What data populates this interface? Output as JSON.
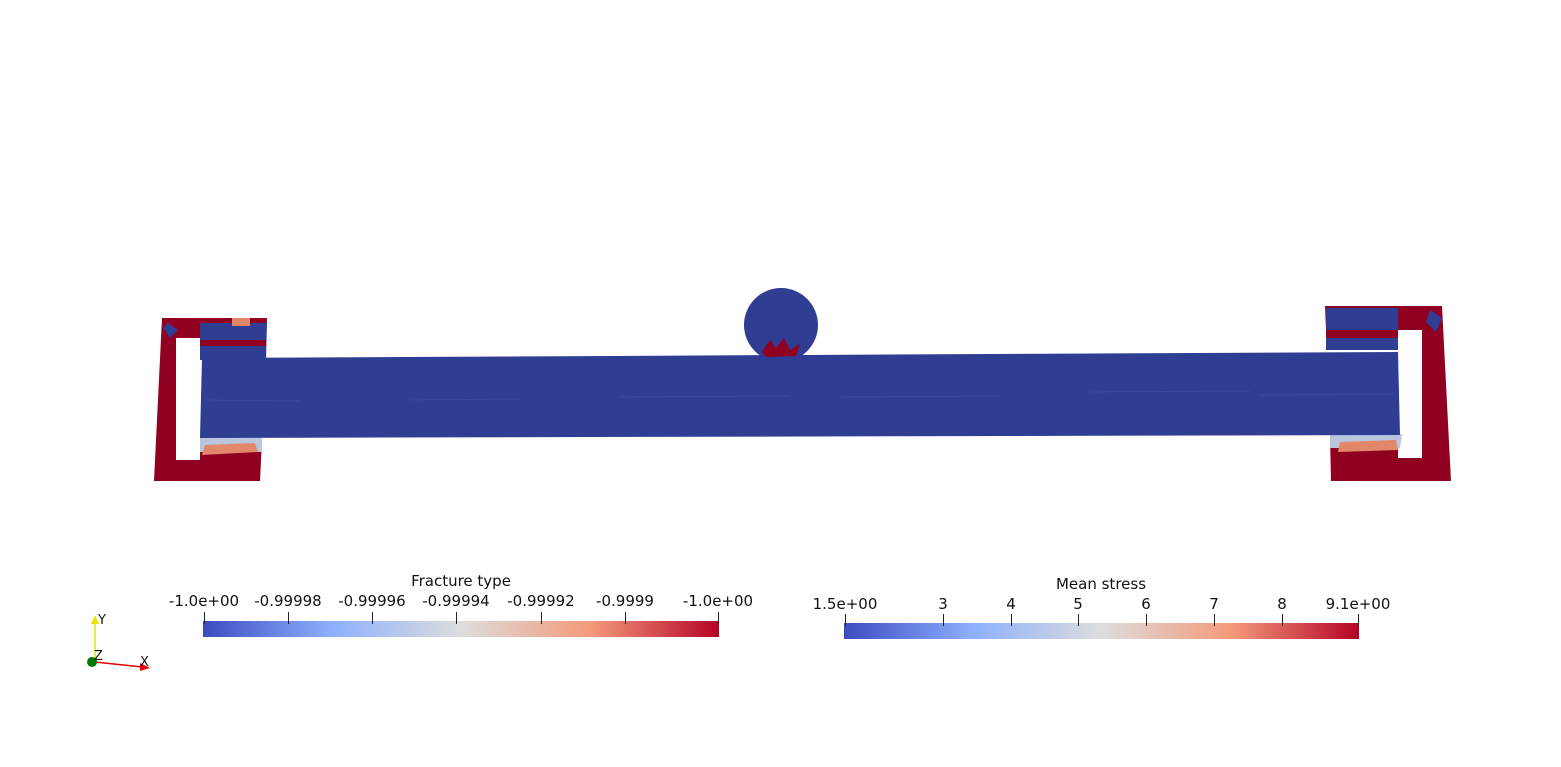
{
  "scene": {
    "mesh_colors": {
      "body": "#2f3d92",
      "high": "#900020",
      "mid": "#e3876b",
      "low": "#b9c6de"
    }
  },
  "legend_fracture": {
    "title": "Fracture type",
    "ticks": [
      "-1.0e+00",
      "-0.99998",
      "-0.99996",
      "-0.99994",
      "-0.99992",
      "-0.9999",
      "-1.0e+00"
    ],
    "colormap": [
      "#3b4cc0",
      "#8db0fe",
      "#dddddd",
      "#f49a7b",
      "#b40426"
    ]
  },
  "legend_stress": {
    "title": "Mean stress",
    "ticks": [
      "1.5e+00",
      "3",
      "4",
      "5",
      "6",
      "7",
      "8",
      "9.1e+00"
    ],
    "colormap": [
      "#3b4cc0",
      "#8db0fe",
      "#dddddd",
      "#f49a7b",
      "#b40426"
    ]
  },
  "axes": {
    "y_label": "Y",
    "z_label": "Z",
    "x_label": "X",
    "y_color": "#e6e600",
    "x_color": "#e60000",
    "z_color": "#007a00"
  }
}
